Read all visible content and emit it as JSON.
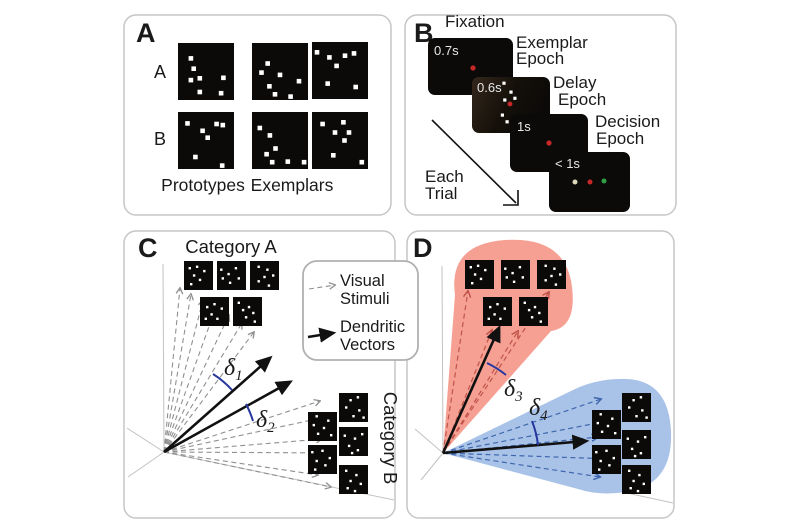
{
  "panelA": {
    "label": "A",
    "row_labels": [
      "A",
      "B"
    ],
    "captions": [
      "Prototypes",
      "Exemplars"
    ],
    "patterns": {
      "a_proto": [
        [
          0.23,
          0.27
        ],
        [
          0.28,
          0.45
        ],
        [
          0.23,
          0.65
        ],
        [
          0.39,
          0.62
        ],
        [
          0.81,
          0.61
        ],
        [
          0.39,
          0.86
        ],
        [
          0.77,
          0.88
        ]
      ],
      "a_ex1": [
        [
          0.28,
          0.36
        ],
        [
          0.17,
          0.52
        ],
        [
          0.5,
          0.56
        ],
        [
          0.31,
          0.76
        ],
        [
          0.41,
          0.9
        ],
        [
          0.69,
          0.94
        ],
        [
          0.84,
          0.67
        ]
      ],
      "a_ex2": [
        [
          0.09,
          0.18
        ],
        [
          0.31,
          0.27
        ],
        [
          0.59,
          0.24
        ],
        [
          0.75,
          0.2
        ],
        [
          0.44,
          0.42
        ],
        [
          0.28,
          0.73
        ],
        [
          0.78,
          0.79
        ]
      ],
      "b_proto": [
        [
          0.17,
          0.2
        ],
        [
          0.69,
          0.21
        ],
        [
          0.8,
          0.23
        ],
        [
          0.44,
          0.33
        ],
        [
          0.53,
          0.45
        ],
        [
          0.31,
          0.79
        ],
        [
          0.79,
          0.94
        ]
      ],
      "b_ex1": [
        [
          0.14,
          0.28
        ],
        [
          0.32,
          0.41
        ],
        [
          0.42,
          0.64
        ],
        [
          0.26,
          0.74
        ],
        [
          0.36,
          0.88
        ],
        [
          0.64,
          0.87
        ],
        [
          0.93,
          0.88
        ]
      ],
      "b_ex2": [
        [
          0.19,
          0.21
        ],
        [
          0.56,
          0.18
        ],
        [
          0.41,
          0.36
        ],
        [
          0.66,
          0.36
        ],
        [
          0.58,
          0.5
        ],
        [
          0.38,
          0.76
        ],
        [
          0.89,
          0.88
        ]
      ]
    }
  },
  "panelB": {
    "label": "B",
    "fixation": "Fixation",
    "screens": [
      {
        "duration": "0.7s"
      },
      {
        "duration": "0.6s"
      },
      {
        "duration": "1s"
      },
      {
        "duration": "< 1s"
      }
    ],
    "epochs": [
      {
        "line1": "Exemplar",
        "line2": "Epoch"
      },
      {
        "line1": "Delay",
        "line2": "Epoch"
      },
      {
        "line1": "Decision",
        "line2": "Epoch"
      }
    ],
    "each_trial_line1": "Each",
    "each_trial_line2": "Trial",
    "exemplar_dots": [
      [
        0.41,
        0.11
      ],
      [
        0.5,
        0.27
      ],
      [
        0.55,
        0.38
      ],
      [
        0.42,
        0.41
      ],
      [
        0.39,
        0.68
      ],
      [
        0.45,
        0.8
      ]
    ]
  },
  "panelC": {
    "label": "C",
    "category_a": "Category A",
    "category_b": "Category B",
    "delta1": {
      "sym": "δ",
      "sub": "1"
    },
    "delta2": {
      "sym": "δ",
      "sub": "2"
    },
    "legend": {
      "visual_line1": "Visual",
      "visual_line2": "Stimuli",
      "dendritic_line1": "Dendritic",
      "dendritic_line2": "Vectors"
    }
  },
  "panelD": {
    "label": "D",
    "delta3": {
      "sym": "δ",
      "sub": "3"
    },
    "delta4": {
      "sym": "δ",
      "sub": "4"
    }
  },
  "mini_patterns": {
    "m1": [
      [
        0.2,
        0.25
      ],
      [
        0.45,
        0.2
      ],
      [
        0.7,
        0.35
      ],
      [
        0.35,
        0.5
      ],
      [
        0.55,
        0.65
      ],
      [
        0.25,
        0.8
      ]
    ],
    "m2": [
      [
        0.15,
        0.3
      ],
      [
        0.4,
        0.45
      ],
      [
        0.65,
        0.25
      ],
      [
        0.75,
        0.6
      ],
      [
        0.45,
        0.75
      ],
      [
        0.2,
        0.6
      ]
    ],
    "m3": [
      [
        0.3,
        0.2
      ],
      [
        0.6,
        0.3
      ],
      [
        0.8,
        0.5
      ],
      [
        0.5,
        0.55
      ],
      [
        0.3,
        0.7
      ],
      [
        0.65,
        0.85
      ]
    ],
    "m4": [
      [
        0.25,
        0.35
      ],
      [
        0.5,
        0.25
      ],
      [
        0.75,
        0.4
      ],
      [
        0.4,
        0.6
      ],
      [
        0.6,
        0.75
      ],
      [
        0.2,
        0.75
      ]
    ],
    "m5": [
      [
        0.2,
        0.2
      ],
      [
        0.55,
        0.35
      ],
      [
        0.35,
        0.45
      ],
      [
        0.7,
        0.55
      ],
      [
        0.45,
        0.7
      ],
      [
        0.75,
        0.85
      ]
    ],
    "n1": [
      [
        0.3,
        0.15
      ],
      [
        0.7,
        0.3
      ],
      [
        0.2,
        0.45
      ],
      [
        0.55,
        0.55
      ],
      [
        0.35,
        0.75
      ],
      [
        0.8,
        0.8
      ]
    ],
    "n2": [
      [
        0.15,
        0.25
      ],
      [
        0.5,
        0.2
      ],
      [
        0.75,
        0.45
      ],
      [
        0.3,
        0.55
      ],
      [
        0.6,
        0.7
      ],
      [
        0.25,
        0.85
      ]
    ],
    "n3": [
      [
        0.4,
        0.25
      ],
      [
        0.65,
        0.15
      ],
      [
        0.25,
        0.5
      ],
      [
        0.7,
        0.6
      ],
      [
        0.5,
        0.8
      ],
      [
        0.85,
        0.85
      ]
    ],
    "n4": [
      [
        0.2,
        0.3
      ],
      [
        0.55,
        0.4
      ],
      [
        0.8,
        0.25
      ],
      [
        0.35,
        0.65
      ],
      [
        0.65,
        0.8
      ],
      [
        0.45,
        0.9
      ]
    ],
    "n5": [
      [
        0.25,
        0.2
      ],
      [
        0.6,
        0.35
      ],
      [
        0.4,
        0.55
      ],
      [
        0.75,
        0.65
      ],
      [
        0.3,
        0.8
      ],
      [
        0.55,
        0.9
      ]
    ]
  },
  "colors": {
    "red_cone": "#f6a093",
    "blue_cone": "#a9c3e8",
    "red_dash": "#c0544a",
    "blue_dash": "#3f67ad",
    "gray_dash": "#909090",
    "delta_blue": "#27379e",
    "screen_black": "#0c0a09",
    "fixation_red": "#c62828",
    "target_green": "#2f9e44",
    "target_white": "#ddd8b8",
    "panel_border": "#c6c6c6"
  }
}
